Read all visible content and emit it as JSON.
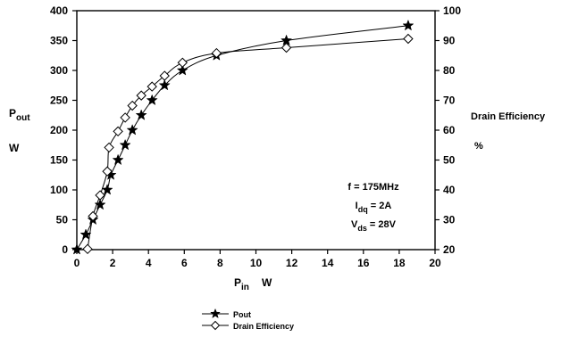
{
  "chart_data": {
    "type": "line",
    "x_axis": {
      "label_main": "P",
      "label_sub": "in",
      "label_unit": "W",
      "range": [
        0,
        20
      ],
      "ticks": [
        0,
        2,
        4,
        6,
        8,
        10,
        12,
        14,
        16,
        18,
        20
      ]
    },
    "y_axis_left": {
      "label_main": "P",
      "label_sub": "out",
      "label_unit": "W",
      "range": [
        0,
        400
      ],
      "ticks": [
        0,
        50,
        100,
        150,
        200,
        250,
        300,
        350,
        400
      ]
    },
    "y_axis_right": {
      "label": "Drain Efficiency",
      "label_unit": "%",
      "range": [
        20,
        100
      ],
      "ticks": [
        20,
        30,
        40,
        50,
        60,
        70,
        80,
        90,
        100
      ]
    },
    "grid": false,
    "legend_placement": "bottom-center",
    "series": [
      {
        "name": "Pout",
        "axis": "left",
        "marker": "star",
        "points": [
          {
            "x": 0.0,
            "y": 0
          },
          {
            "x": 0.5,
            "y": 25
          },
          {
            "x": 0.9,
            "y": 50
          },
          {
            "x": 1.3,
            "y": 75
          },
          {
            "x": 1.7,
            "y": 100
          },
          {
            "x": 1.9,
            "y": 125
          },
          {
            "x": 2.3,
            "y": 150
          },
          {
            "x": 2.7,
            "y": 175
          },
          {
            "x": 3.1,
            "y": 200
          },
          {
            "x": 3.6,
            "y": 225
          },
          {
            "x": 4.2,
            "y": 250
          },
          {
            "x": 4.9,
            "y": 275
          },
          {
            "x": 5.9,
            "y": 300
          },
          {
            "x": 7.8,
            "y": 325
          },
          {
            "x": 11.7,
            "y": 350
          },
          {
            "x": 18.5,
            "y": 375
          }
        ]
      },
      {
        "name": "Drain Efficiency",
        "axis": "right",
        "marker": "diamond",
        "points": [
          {
            "x": 0.6,
            "y": 20.2
          },
          {
            "x": 0.9,
            "y": 31.2
          },
          {
            "x": 1.3,
            "y": 38.2
          },
          {
            "x": 1.7,
            "y": 46.2
          },
          {
            "x": 1.8,
            "y": 54.2
          },
          {
            "x": 2.3,
            "y": 59.6
          },
          {
            "x": 2.7,
            "y": 64.2
          },
          {
            "x": 3.1,
            "y": 68.2
          },
          {
            "x": 3.6,
            "y": 71.6
          },
          {
            "x": 4.2,
            "y": 74.6
          },
          {
            "x": 4.9,
            "y": 78.2
          },
          {
            "x": 5.9,
            "y": 82.6
          },
          {
            "x": 7.8,
            "y": 85.8
          },
          {
            "x": 11.7,
            "y": 87.6
          },
          {
            "x": 18.5,
            "y": 90.6
          }
        ]
      }
    ],
    "annotations": [
      {
        "main": "f = 175MHz",
        "sub": "",
        "rest": ""
      },
      {
        "main": "I",
        "sub": "dq",
        "rest": " = 2A"
      },
      {
        "main": "V",
        "sub": "ds",
        "rest": " = 28V"
      }
    ]
  }
}
